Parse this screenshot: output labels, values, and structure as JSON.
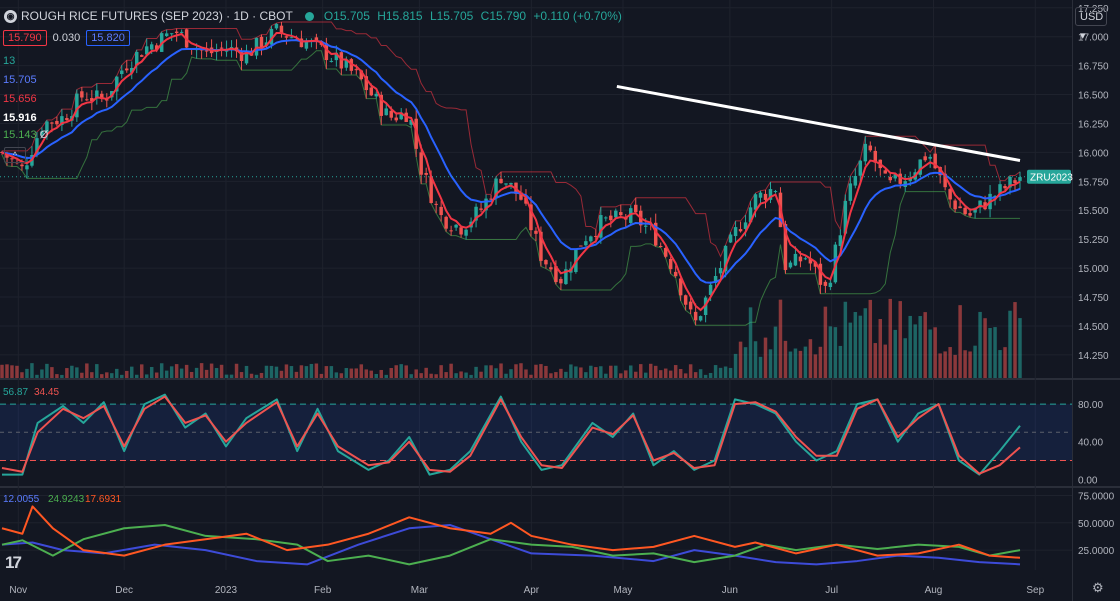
{
  "header": {
    "title": "ROUGH RICE FUTURES (SEP 2023) · 1D · CBOT",
    "open": "O15.705",
    "high": "H15.815",
    "low": "L15.705",
    "close": "C15.790",
    "change": "+0.110 (+0.70%)",
    "currency": "USD"
  },
  "legend": {
    "bid": "15.790",
    "spread": "0.030",
    "ask": "15.820",
    "ma_period": "13",
    "ma1": "15.705",
    "ma2": "15.656",
    "value3": "15.916",
    "value4": "15.143",
    "value4_suffix": "Ø"
  },
  "ticker_tag": "ZRU2023",
  "colors": {
    "up": "#26a69a",
    "down": "#ef5350",
    "fast_ma": "#f23645",
    "slow_ma": "#2962ff",
    "trend": "#ffffff",
    "stoch_k": "#26a69a",
    "stoch_d": "#ef5350",
    "dmi_plus": "#4caf50",
    "dmi_minus": "#ff5722",
    "adx": "#3d4bd8"
  },
  "chart_data": [
    {
      "type": "candlestick",
      "title": "ROUGH RICE FUTURES (SEP 2023)",
      "ylim": [
        14.05,
        17.3
      ],
      "y_ticks": [
        "17.250",
        "17.000",
        "16.750",
        "16.500",
        "16.250",
        "16.000",
        "15.750",
        "15.500",
        "15.250",
        "15.000",
        "14.750",
        "14.500",
        "14.250"
      ],
      "x_ticks": [
        "Nov",
        "Dec",
        "2023",
        "Feb",
        "Mar",
        "Apr",
        "May",
        "Jun",
        "Jul",
        "Aug",
        "Sep"
      ],
      "trend_line": {
        "from": 16.57,
        "to": 15.93
      },
      "close_path": [
        {
          "t": 0,
          "v": 16.0
        },
        {
          "t": 0.02,
          "v": 15.85
        },
        {
          "t": 0.04,
          "v": 16.25
        },
        {
          "t": 0.06,
          "v": 16.3
        },
        {
          "t": 0.08,
          "v": 16.5
        },
        {
          "t": 0.1,
          "v": 16.45
        },
        {
          "t": 0.12,
          "v": 16.75
        },
        {
          "t": 0.14,
          "v": 16.9
        },
        {
          "t": 0.17,
          "v": 17.05
        },
        {
          "t": 0.2,
          "v": 16.85
        },
        {
          "t": 0.22,
          "v": 16.9
        },
        {
          "t": 0.24,
          "v": 16.85
        },
        {
          "t": 0.27,
          "v": 17.05
        },
        {
          "t": 0.3,
          "v": 16.95
        },
        {
          "t": 0.32,
          "v": 16.85
        },
        {
          "t": 0.35,
          "v": 16.65
        },
        {
          "t": 0.38,
          "v": 16.3
        },
        {
          "t": 0.4,
          "v": 16.35
        },
        {
          "t": 0.41,
          "v": 15.9
        },
        {
          "t": 0.43,
          "v": 15.45
        },
        {
          "t": 0.45,
          "v": 15.35
        },
        {
          "t": 0.47,
          "v": 15.5
        },
        {
          "t": 0.49,
          "v": 15.8
        },
        {
          "t": 0.51,
          "v": 15.6
        },
        {
          "t": 0.53,
          "v": 15.1
        },
        {
          "t": 0.55,
          "v": 14.9
        },
        {
          "t": 0.57,
          "v": 15.25
        },
        {
          "t": 0.59,
          "v": 15.4
        },
        {
          "t": 0.62,
          "v": 15.45
        },
        {
          "t": 0.64,
          "v": 15.3
        },
        {
          "t": 0.66,
          "v": 15.0
        },
        {
          "t": 0.68,
          "v": 14.5
        },
        {
          "t": 0.7,
          "v": 14.9
        },
        {
          "t": 0.72,
          "v": 15.3
        },
        {
          "t": 0.74,
          "v": 15.6
        },
        {
          "t": 0.76,
          "v": 15.7
        },
        {
          "t": 0.77,
          "v": 15.0
        },
        {
          "t": 0.79,
          "v": 15.1
        },
        {
          "t": 0.81,
          "v": 14.8
        },
        {
          "t": 0.83,
          "v": 15.6
        },
        {
          "t": 0.85,
          "v": 16.05
        },
        {
          "t": 0.87,
          "v": 15.7
        },
        {
          "t": 0.89,
          "v": 15.8
        },
        {
          "t": 0.91,
          "v": 16.0
        },
        {
          "t": 0.93,
          "v": 15.6
        },
        {
          "t": 0.95,
          "v": 15.45
        },
        {
          "t": 0.97,
          "v": 15.6
        },
        {
          "t": 1.0,
          "v": 15.79
        }
      ]
    },
    {
      "type": "line",
      "title": "Stochastic",
      "legend": [
        "56.87",
        "34.45"
      ],
      "y_ticks": [
        "80.00",
        "40.00",
        "0.00"
      ],
      "levels": [
        80,
        50,
        20
      ],
      "ylim": [
        -5,
        95
      ],
      "series": [
        {
          "name": "56.87",
          "points": [
            [
              0,
              5
            ],
            [
              0.02,
              5
            ],
            [
              0.035,
              60
            ],
            [
              0.06,
              78
            ],
            [
              0.08,
              60
            ],
            [
              0.1,
              82
            ],
            [
              0.12,
              30
            ],
            [
              0.14,
              80
            ],
            [
              0.16,
              90
            ],
            [
              0.18,
              55
            ],
            [
              0.2,
              70
            ],
            [
              0.22,
              35
            ],
            [
              0.24,
              65
            ],
            [
              0.27,
              85
            ],
            [
              0.29,
              30
            ],
            [
              0.31,
              75
            ],
            [
              0.33,
              30
            ],
            [
              0.36,
              10
            ],
            [
              0.38,
              20
            ],
            [
              0.4,
              45
            ],
            [
              0.42,
              5
            ],
            [
              0.44,
              10
            ],
            [
              0.46,
              30
            ],
            [
              0.49,
              88
            ],
            [
              0.51,
              40
            ],
            [
              0.53,
              10
            ],
            [
              0.55,
              15
            ],
            [
              0.58,
              60
            ],
            [
              0.6,
              45
            ],
            [
              0.62,
              70
            ],
            [
              0.64,
              15
            ],
            [
              0.66,
              30
            ],
            [
              0.68,
              10
            ],
            [
              0.7,
              20
            ],
            [
              0.72,
              85
            ],
            [
              0.74,
              80
            ],
            [
              0.76,
              70
            ],
            [
              0.78,
              40
            ],
            [
              0.8,
              20
            ],
            [
              0.82,
              30
            ],
            [
              0.84,
              80
            ],
            [
              0.86,
              85
            ],
            [
              0.88,
              40
            ],
            [
              0.9,
              70
            ],
            [
              0.92,
              80
            ],
            [
              0.94,
              20
            ],
            [
              0.96,
              5
            ],
            [
              0.98,
              30
            ],
            [
              1.0,
              57
            ]
          ]
        },
        {
          "name": "34.45",
          "points": [
            [
              0,
              12
            ],
            [
              0.02,
              8
            ],
            [
              0.035,
              50
            ],
            [
              0.06,
              75
            ],
            [
              0.08,
              65
            ],
            [
              0.1,
              78
            ],
            [
              0.12,
              35
            ],
            [
              0.14,
              75
            ],
            [
              0.16,
              88
            ],
            [
              0.18,
              60
            ],
            [
              0.2,
              68
            ],
            [
              0.22,
              40
            ],
            [
              0.24,
              60
            ],
            [
              0.27,
              82
            ],
            [
              0.29,
              35
            ],
            [
              0.31,
              70
            ],
            [
              0.33,
              35
            ],
            [
              0.36,
              15
            ],
            [
              0.38,
              18
            ],
            [
              0.4,
              40
            ],
            [
              0.42,
              10
            ],
            [
              0.44,
              8
            ],
            [
              0.46,
              25
            ],
            [
              0.49,
              85
            ],
            [
              0.51,
              45
            ],
            [
              0.53,
              15
            ],
            [
              0.55,
              12
            ],
            [
              0.58,
              55
            ],
            [
              0.6,
              48
            ],
            [
              0.62,
              68
            ],
            [
              0.64,
              20
            ],
            [
              0.66,
              28
            ],
            [
              0.68,
              12
            ],
            [
              0.7,
              15
            ],
            [
              0.72,
              80
            ],
            [
              0.74,
              82
            ],
            [
              0.76,
              72
            ],
            [
              0.78,
              45
            ],
            [
              0.8,
              25
            ],
            [
              0.82,
              25
            ],
            [
              0.84,
              75
            ],
            [
              0.86,
              85
            ],
            [
              0.88,
              45
            ],
            [
              0.9,
              65
            ],
            [
              0.92,
              80
            ],
            [
              0.94,
              25
            ],
            [
              0.96,
              6
            ],
            [
              0.98,
              15
            ],
            [
              1.0,
              34
            ]
          ]
        }
      ]
    },
    {
      "type": "line",
      "title": "DMI",
      "legend": [
        "12.0055",
        "24.9243",
        "17.6931"
      ],
      "y_ticks": [
        "75.0000",
        "50.0000",
        "25.0000"
      ],
      "ylim": [
        5,
        80
      ],
      "series": [
        {
          "name": "12.0055",
          "points": [
            [
              0,
              30
            ],
            [
              0.03,
              32
            ],
            [
              0.06,
              25
            ],
            [
              0.1,
              22
            ],
            [
              0.15,
              30
            ],
            [
              0.2,
              25
            ],
            [
              0.25,
              15
            ],
            [
              0.3,
              12
            ],
            [
              0.35,
              30
            ],
            [
              0.4,
              45
            ],
            [
              0.44,
              48
            ],
            [
              0.48,
              35
            ],
            [
              0.52,
              22
            ],
            [
              0.58,
              20
            ],
            [
              0.64,
              15
            ],
            [
              0.68,
              25
            ],
            [
              0.72,
              20
            ],
            [
              0.76,
              14
            ],
            [
              0.8,
              12
            ],
            [
              0.84,
              15
            ],
            [
              0.88,
              20
            ],
            [
              0.92,
              18
            ],
            [
              0.96,
              14
            ],
            [
              1.0,
              12
            ]
          ]
        },
        {
          "name": "24.9243",
          "points": [
            [
              0,
              30
            ],
            [
              0.02,
              34
            ],
            [
              0.05,
              20
            ],
            [
              0.08,
              35
            ],
            [
              0.12,
              45
            ],
            [
              0.16,
              48
            ],
            [
              0.2,
              38
            ],
            [
              0.25,
              35
            ],
            [
              0.29,
              30
            ],
            [
              0.32,
              15
            ],
            [
              0.36,
              20
            ],
            [
              0.4,
              12
            ],
            [
              0.44,
              20
            ],
            [
              0.48,
              35
            ],
            [
              0.52,
              30
            ],
            [
              0.56,
              28
            ],
            [
              0.6,
              20
            ],
            [
              0.64,
              22
            ],
            [
              0.68,
              14
            ],
            [
              0.72,
              20
            ],
            [
              0.75,
              30
            ],
            [
              0.78,
              25
            ],
            [
              0.82,
              30
            ],
            [
              0.86,
              26
            ],
            [
              0.9,
              30
            ],
            [
              0.94,
              28
            ],
            [
              0.97,
              20
            ],
            [
              1.0,
              25
            ]
          ]
        },
        {
          "name": "17.6931",
          "points": [
            [
              0,
              45
            ],
            [
              0.02,
              40
            ],
            [
              0.03,
              65
            ],
            [
              0.05,
              45
            ],
            [
              0.08,
              25
            ],
            [
              0.12,
              20
            ],
            [
              0.16,
              30
            ],
            [
              0.2,
              35
            ],
            [
              0.24,
              40
            ],
            [
              0.28,
              25
            ],
            [
              0.32,
              30
            ],
            [
              0.36,
              40
            ],
            [
              0.4,
              55
            ],
            [
              0.44,
              45
            ],
            [
              0.48,
              40
            ],
            [
              0.5,
              50
            ],
            [
              0.52,
              38
            ],
            [
              0.56,
              30
            ],
            [
              0.6,
              25
            ],
            [
              0.64,
              28
            ],
            [
              0.68,
              38
            ],
            [
              0.72,
              28
            ],
            [
              0.74,
              32
            ],
            [
              0.78,
              22
            ],
            [
              0.82,
              30
            ],
            [
              0.86,
              20
            ],
            [
              0.9,
              22
            ],
            [
              0.94,
              30
            ],
            [
              0.97,
              20
            ],
            [
              1.0,
              18
            ]
          ]
        }
      ]
    }
  ]
}
